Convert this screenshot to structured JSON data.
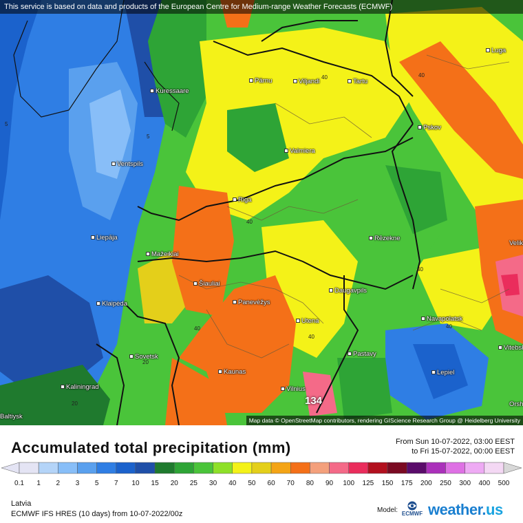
{
  "banner": "This service is based on data and products of the European Centre for Medium-range Weather Forecasts (ECMWF)",
  "attribution": "Map data © OpenStreetMap contributors, rendering GIScience Research Group @ Heidelberg University",
  "cities": [
    {
      "name": "Pärnu"
    },
    {
      "name": "Viljandi"
    },
    {
      "name": "Tartu"
    },
    {
      "name": "Luga"
    },
    {
      "name": "Kuressaare"
    },
    {
      "name": "Pskov"
    },
    {
      "name": "Valmiera"
    },
    {
      "name": "Ventspils"
    },
    {
      "name": "Riga"
    },
    {
      "name": "Liepāja"
    },
    {
      "name": "Rēzekne"
    },
    {
      "name": "Mažeikiai"
    },
    {
      "name": "Šiauliai"
    },
    {
      "name": "Klaipėda"
    },
    {
      "name": "Panevėžys"
    },
    {
      "name": "Daugavpils"
    },
    {
      "name": "Utena"
    },
    {
      "name": "Navapolatsk"
    },
    {
      "name": "Sovetsk"
    },
    {
      "name": "Pastavy"
    },
    {
      "name": "Kaunas"
    },
    {
      "name": "Lepiel"
    },
    {
      "name": "Kaliningrad"
    },
    {
      "name": "Vilnius"
    },
    {
      "name": "Vitebsk"
    },
    {
      "name": "Orsha"
    },
    {
      "name": "Velikie"
    },
    {
      "name": "Baltiysk"
    }
  ],
  "contour_labels": [
    "40",
    "40",
    "40",
    "40",
    "40",
    "40",
    "40",
    "5",
    "5",
    "20",
    "20"
  ],
  "max_value": "134",
  "title": "Accumulated total precipitation (mm)",
  "period": {
    "from": "From Sun 10-07-2022, 03:00 EEST",
    "to": "to Fri 15-07-2022, 00:00 EEST"
  },
  "legend": {
    "values": [
      "0.1",
      "1",
      "2",
      "3",
      "5",
      "7",
      "10",
      "15",
      "20",
      "25",
      "30",
      "40",
      "50",
      "60",
      "70",
      "80",
      "90",
      "100",
      "125",
      "150",
      "175",
      "200",
      "250",
      "300",
      "400",
      "500"
    ],
    "colors": [
      "#e4e4f4",
      "#b4d4f8",
      "#88bef8",
      "#5aa0ee",
      "#2f7ee4",
      "#1b62cc",
      "#1f4fa8",
      "#1f7a2e",
      "#2ea436",
      "#4ac43a",
      "#8ee028",
      "#f4f218",
      "#e4cf1a",
      "#f4a416",
      "#f47018",
      "#f4a07c",
      "#f46a88",
      "#ea2d5c",
      "#b2101e",
      "#7a0a22",
      "#5a0c6a",
      "#aa30ba",
      "#de70e4",
      "#eeaaf4",
      "#f4d8f4",
      "#d8d8d8"
    ]
  },
  "region": "Latvia",
  "model_line": "ECMWF IFS HRES (10 days) from 10-07-2022/00z",
  "model_label": "Model:",
  "ecmwf_text": "ECMWF",
  "brand": {
    "main": "weather.",
    "suffix": "us"
  }
}
